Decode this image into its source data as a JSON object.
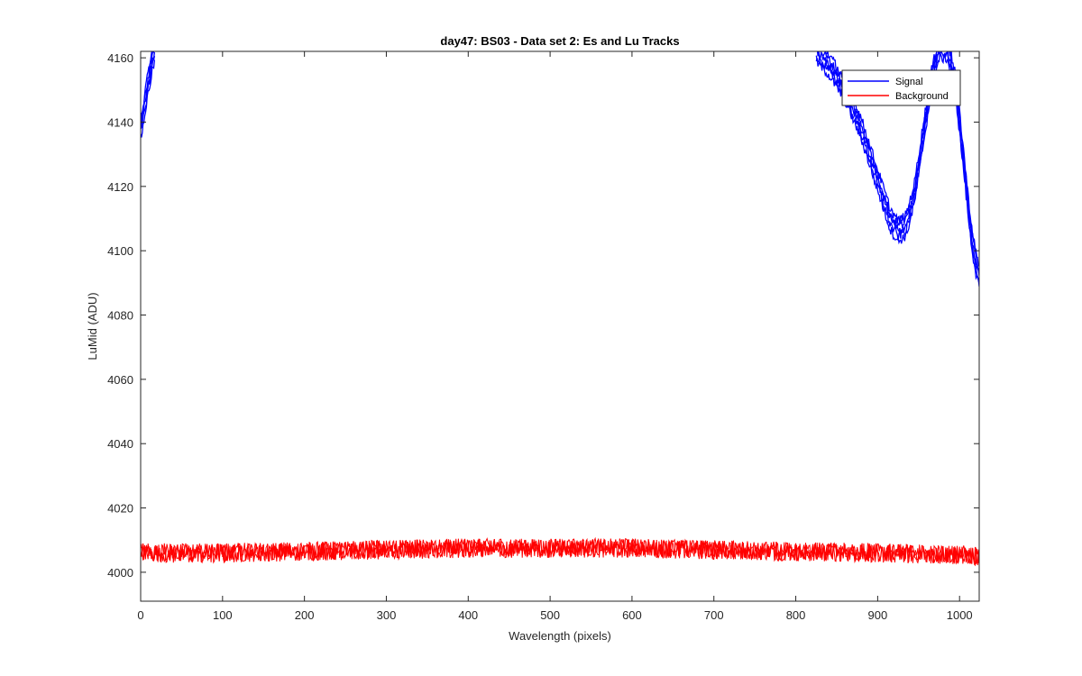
{
  "chart_data": {
    "type": "line",
    "title": "day47: BS03 - Data set 2: Es and Lu Tracks",
    "xlabel": "Wavelength (pixels)",
    "ylabel": "LuMid (ADU)",
    "xlim": [
      0,
      1024
    ],
    "ylim": [
      3991,
      4162
    ],
    "xticks": [
      0,
      100,
      200,
      300,
      400,
      500,
      600,
      700,
      800,
      900,
      1000
    ],
    "yticks": [
      4000,
      4020,
      4040,
      4060,
      4080,
      4100,
      4120,
      4140,
      4160
    ],
    "grid": false,
    "legend": {
      "position": "top-right",
      "entries": [
        {
          "label": "Signal",
          "color": "#0000ff"
        },
        {
          "label": "Background",
          "color": "#ff0000"
        }
      ]
    },
    "series": [
      {
        "name": "Signal",
        "color": "#0000ff",
        "traces": 5,
        "segments": [
          {
            "x": [
              0,
              3,
              6,
              9,
              12,
              15,
              17
            ],
            "y": [
              4138,
              4142,
              4147,
              4152,
              4156,
              4160,
              4162
            ]
          },
          {
            "x": [
              825,
              840,
              860,
              880,
              900,
              915,
              925,
              935,
              945,
              955,
              965,
              975,
              985,
              995,
              1000,
              1005,
              1010,
              1015,
              1020,
              1024
            ],
            "y": [
              4162,
              4158,
              4150,
              4138,
              4122,
              4110,
              4106,
              4108,
              4118,
              4135,
              4152,
              4163,
              4163,
              4152,
              4140,
              4128,
              4115,
              4104,
              4096,
              4092
            ]
          }
        ]
      },
      {
        "name": "Background",
        "color": "#ff0000",
        "traces": 3,
        "x": [
          0,
          100,
          200,
          300,
          400,
          500,
          600,
          700,
          800,
          900,
          1000,
          1024
        ],
        "y": [
          4006,
          4006,
          4006.5,
          4007,
          4007.5,
          4007.5,
          4007.5,
          4007,
          4006.5,
          4006,
          4005.5,
          4005
        ]
      }
    ]
  }
}
